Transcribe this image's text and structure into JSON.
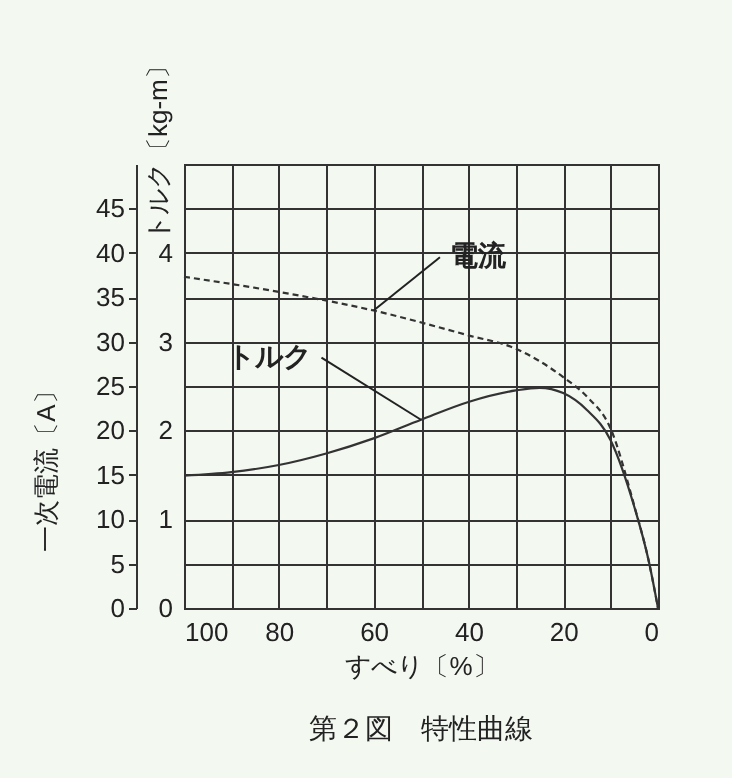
{
  "chart_data": {
    "type": "line",
    "title": "第２図　特性曲線",
    "xlabel": "すべり〔%〕",
    "ylabel": "一次電流〔A〕",
    "y2label": "トルク〔kg-m〕",
    "xlim": [
      100,
      0
    ],
    "xticks": [
      0,
      {
        "value": 10,
        "label": null
      },
      20,
      {
        "value": 30,
        "label": null
      },
      40,
      {
        "value": 50,
        "label": null
      },
      60,
      {
        "value": 70,
        "label": null
      },
      80,
      {
        "value": 90,
        "label": null
      },
      100
    ],
    "ylim": [
      0,
      50
    ],
    "yticks": [
      0,
      5,
      10,
      15,
      20,
      25,
      30,
      35,
      40,
      45
    ],
    "y2lim": [
      0,
      5
    ],
    "y2ticks": [
      0,
      1,
      2,
      3,
      4
    ],
    "grid": true,
    "series": [
      {
        "name": "電流",
        "color": "#333333",
        "line_style": "dashed",
        "x": [
          100,
          80,
          60,
          40,
          30,
          20,
          15,
          10,
          5,
          2,
          0
        ],
        "values": [
          37.3,
          35.6,
          33.5,
          30.7,
          29.2,
          26.0,
          23.8,
          20.2,
          11.5,
          5.4,
          0
        ]
      },
      {
        "name": "トルク",
        "axis": "y2",
        "color": "#333333",
        "line_style": "solid",
        "x": [
          100,
          90,
          80,
          70,
          60,
          50,
          40,
          30,
          25,
          20,
          15,
          10,
          5,
          2,
          0
        ],
        "values": [
          1.49,
          1.53,
          1.61,
          1.74,
          1.91,
          2.12,
          2.32,
          2.45,
          2.48,
          2.42,
          2.23,
          1.89,
          1.14,
          0.54,
          0
        ]
      }
    ]
  }
}
